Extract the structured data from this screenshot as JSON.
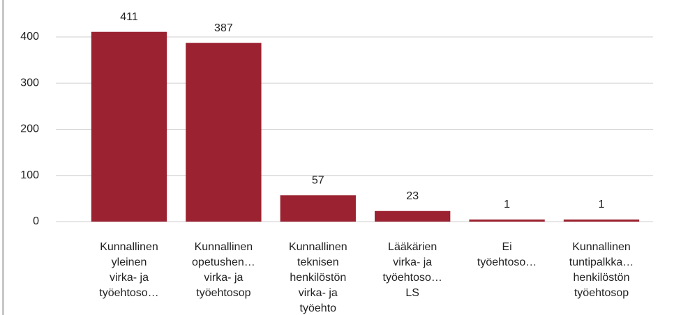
{
  "chart_data": {
    "type": "bar",
    "categories": [
      [
        "Kunnallinen",
        "yleinen",
        "virka- ja",
        "työehtoso…"
      ],
      [
        "Kunnallinen",
        "opetushen…",
        "virka- ja",
        "työehtosop"
      ],
      [
        "Kunnallinen",
        "teknisen",
        "henkilöstön",
        "virka- ja",
        "työehto"
      ],
      [
        "Lääkärien",
        "virka- ja",
        "työehtoso…",
        "LS"
      ],
      [
        "Ei",
        "työehtoso…"
      ],
      [
        "Kunnallinen",
        "tuntipalkka…",
        "henkilöstön",
        "työehtosop"
      ]
    ],
    "values": [
      411,
      387,
      57,
      23,
      1,
      1
    ],
    "color": "#9b2230",
    "ylim": [
      0,
      480
    ],
    "yticks": [
      0,
      100,
      200,
      300,
      400
    ],
    "grid": true
  }
}
